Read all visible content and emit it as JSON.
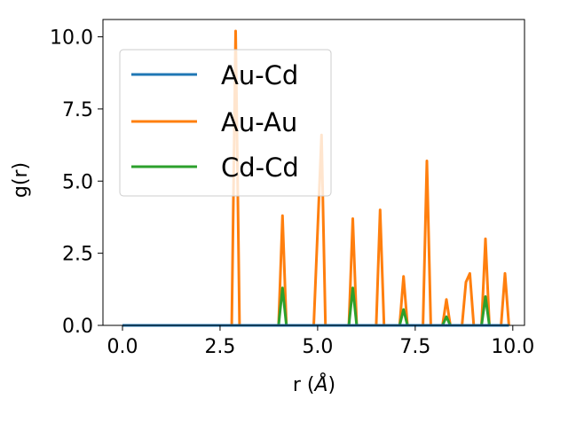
{
  "chart_data": {
    "type": "line",
    "title": "",
    "xlabel": "r (Å)",
    "xlabel_parts": {
      "prefix": "r (",
      "unit": "Å",
      "suffix": ")"
    },
    "ylabel": "g(r)",
    "xlim": [
      -0.5,
      10.3
    ],
    "ylim": [
      0,
      10.6
    ],
    "xticks": [
      0.0,
      2.5,
      5.0,
      7.5,
      10.0
    ],
    "xtick_labels": [
      "0.0",
      "2.5",
      "5.0",
      "7.5",
      "10.0"
    ],
    "yticks": [
      0.0,
      2.5,
      5.0,
      7.5,
      10.0
    ],
    "ytick_labels": [
      "0.0",
      "2.5",
      "5.0",
      "7.5",
      "10.0"
    ],
    "grid": false,
    "legend_position": "upper-left",
    "series": [
      {
        "name": "Au-Cd",
        "color": "#1f77b4",
        "x": [
          0.0,
          9.9
        ],
        "y": [
          0.0,
          0.0
        ]
      },
      {
        "name": "Au-Au",
        "color": "#ff7f0e",
        "x": [
          0.0,
          2.8,
          2.9,
          3.0,
          4.0,
          4.1,
          4.2,
          4.9,
          5.1,
          5.2,
          5.8,
          5.9,
          6.0,
          6.5,
          6.6,
          6.7,
          7.1,
          7.2,
          7.3,
          7.7,
          7.8,
          7.9,
          8.2,
          8.3,
          8.4,
          8.7,
          8.8,
          8.9,
          9.0,
          9.2,
          9.3,
          9.4,
          9.7,
          9.8,
          9.9
        ],
        "y": [
          0.0,
          0.0,
          10.2,
          0.0,
          0.0,
          3.8,
          0.0,
          0.0,
          6.6,
          0.0,
          0.0,
          3.7,
          0.0,
          0.0,
          4.0,
          0.0,
          0.0,
          1.7,
          0.0,
          0.0,
          5.7,
          0.0,
          0.0,
          0.9,
          0.0,
          0.0,
          1.5,
          1.8,
          0.0,
          0.0,
          3.0,
          0.0,
          0.0,
          1.8,
          0.0
        ]
      },
      {
        "name": "Cd-Cd",
        "color": "#2ca02c",
        "x": [
          0.0,
          4.0,
          4.1,
          4.2,
          5.8,
          5.9,
          6.0,
          7.1,
          7.2,
          7.3,
          8.2,
          8.3,
          8.4,
          9.2,
          9.3,
          9.4,
          9.9
        ],
        "y": [
          0.0,
          0.0,
          1.3,
          0.0,
          0.0,
          1.3,
          0.0,
          0.0,
          0.55,
          0.0,
          0.0,
          0.3,
          0.0,
          0.0,
          1.0,
          0.0,
          0.0
        ]
      }
    ]
  }
}
